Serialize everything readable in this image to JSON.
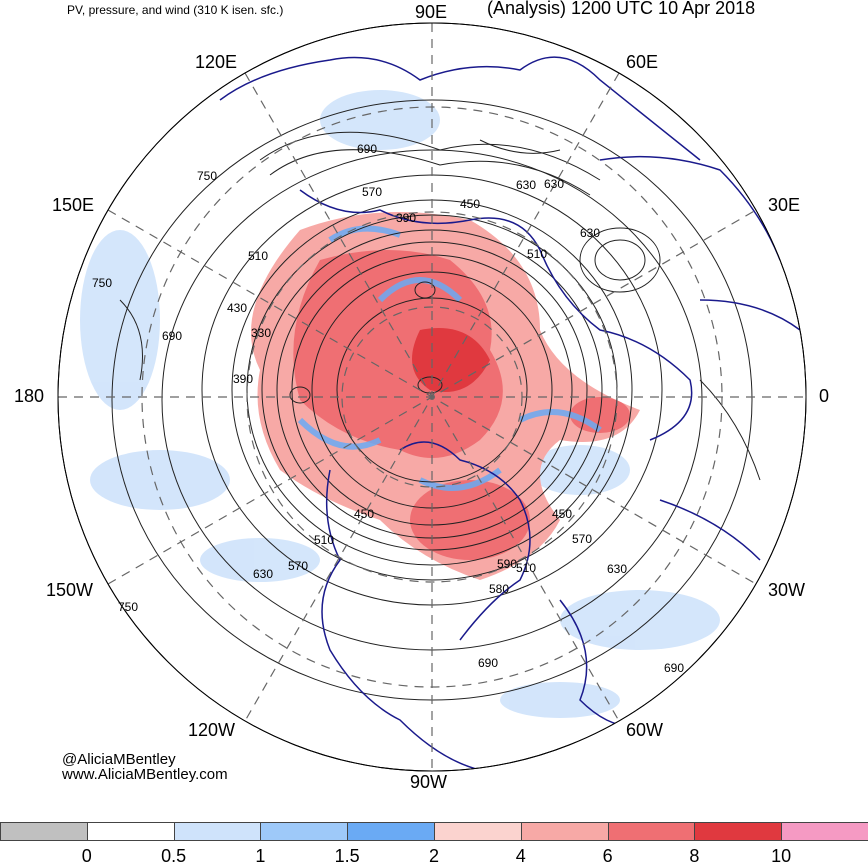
{
  "header": {
    "left": "PV, pressure, and wind (310 K isen. sfc.)",
    "right": "(Analysis) 1200 UTC 10 Apr 2018"
  },
  "lon_labels": {
    "e90": "90E",
    "e120": "120E",
    "e60": "60E",
    "e150": "150E",
    "e30": "30E",
    "l180": "180",
    "l0": "0",
    "w150": "150W",
    "w30": "30W",
    "w120": "120W",
    "w60": "60W",
    "w90": "90W"
  },
  "contour_labels": [
    "690",
    "750",
    "570",
    "630",
    "390",
    "450",
    "510",
    "750",
    "690",
    "330",
    "390",
    "430",
    "510",
    "450",
    "510",
    "570",
    "630",
    "750",
    "450",
    "570",
    "630",
    "510",
    "630",
    "690",
    "690",
    "630",
    "590",
    "580"
  ],
  "credit": {
    "handle": "@AliciaMBentley",
    "site": "www.AliciaMBentley.com"
  },
  "colorbar": {
    "ticks": [
      "0",
      "0.5",
      "1",
      "1.5",
      "2",
      "4",
      "6",
      "8",
      "10"
    ],
    "colors": [
      "#c0c0c0",
      "#ffffff",
      "#cfe3fb",
      "#9ec9f9",
      "#6aaaf4",
      "#fbd3cf",
      "#f7a9a6",
      "#ef6f73",
      "#e0393f",
      "#f59ac3"
    ]
  },
  "colors": {
    "coast": "#1a1a8c",
    "contour": "#222222",
    "grid": "#666666"
  }
}
